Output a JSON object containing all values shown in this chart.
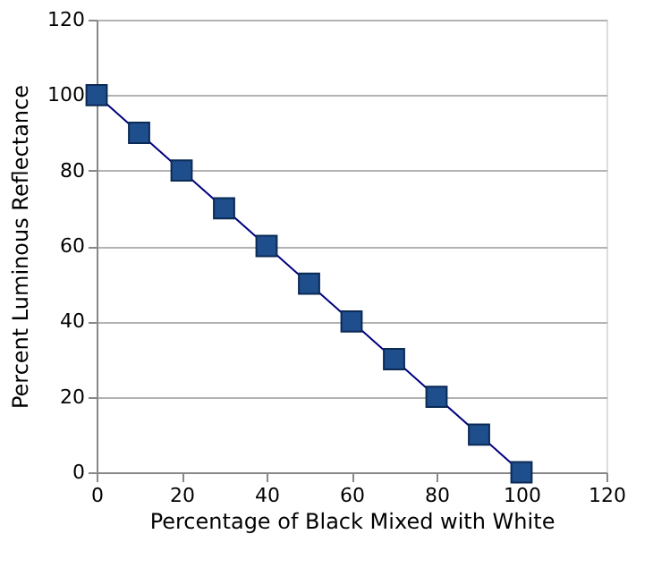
{
  "chart_data": {
    "type": "line",
    "xlabel": "Percentage of Black Mixed with White",
    "ylabel": "Percent Luminous Reflectance",
    "x": [
      0,
      10,
      20,
      30,
      40,
      50,
      60,
      70,
      80,
      90,
      100
    ],
    "series": [
      {
        "color": "#1f4e8c",
        "values": [
          100,
          90,
          80,
          70,
          60,
          50,
          40,
          30,
          20,
          10,
          0
        ]
      }
    ],
    "xlim": [
      0,
      120
    ],
    "ylim": [
      0,
      120
    ],
    "xticks": [
      0,
      20,
      40,
      60,
      80,
      100,
      120
    ],
    "yticks": [
      0,
      20,
      40,
      60,
      80,
      100,
      120
    ],
    "grid": "y",
    "marker": "square",
    "line_style": "solid"
  }
}
